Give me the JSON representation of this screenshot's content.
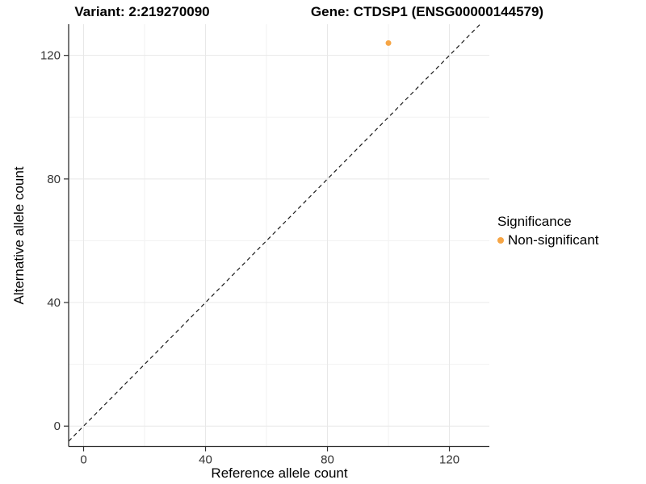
{
  "chart_data": {
    "type": "scatter",
    "titles": {
      "left": "Variant: 2:219270090",
      "right": "Gene: CTDSP1 (ENSG00000144579)"
    },
    "xlabel": "Reference allele count",
    "ylabel": "Alternative allele count",
    "x_ticks": [
      0,
      40,
      80,
      120
    ],
    "x_minor": [
      20,
      60,
      100
    ],
    "y_ticks": [
      0,
      40,
      80,
      120
    ],
    "y_minor": [
      20,
      60,
      100
    ],
    "xlim": [
      -4.9,
      133.1
    ],
    "ylim": [
      -6.6,
      130.1
    ],
    "grid": true,
    "identity_line": {
      "style": "dashed",
      "equation": "y = x",
      "color": "#1a1a1a"
    },
    "points": [
      {
        "x": 100,
        "y": 124,
        "series": "Non-significant",
        "color": "#F6A545",
        "radius": 3.5
      }
    ],
    "legend": {
      "title": "Significance",
      "position": "right",
      "items": [
        {
          "label": "Non-significant",
          "color": "#F6A545"
        }
      ]
    },
    "colors": {
      "point": "#F6A545",
      "grid_major": "#E8E8E8",
      "grid_minor": "#F2F2F2",
      "axis": "#2e2e2e",
      "tick_label": "#333333"
    }
  }
}
